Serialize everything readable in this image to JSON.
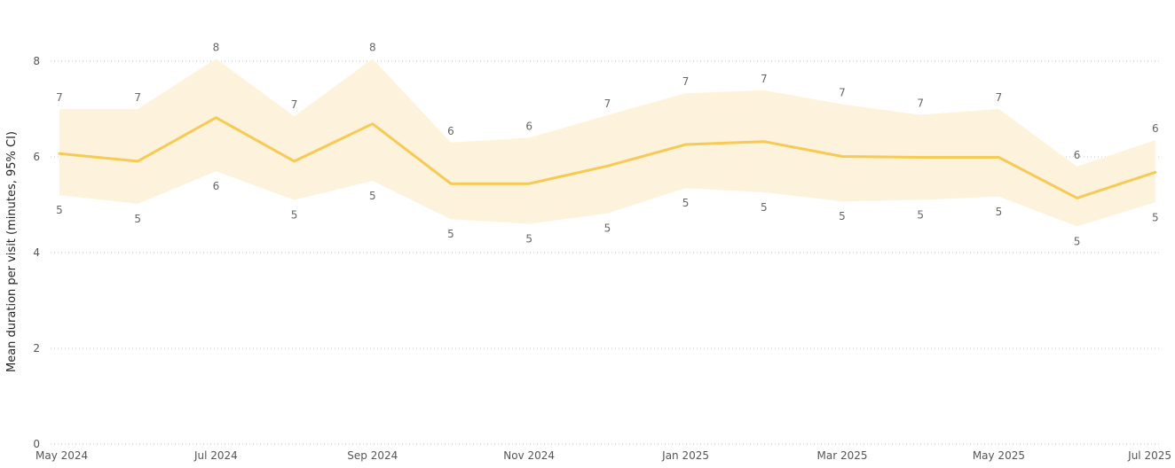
{
  "chart_data": {
    "type": "line",
    "ylabel": "Mean duration per visit (minutes, 95% CI)",
    "xlabel": "",
    "ylim": [
      0,
      8
    ],
    "y_ticks": [
      "0",
      "2",
      "4",
      "6",
      "8"
    ],
    "x_tick_labels": [
      "May 2024",
      "Jul 2024",
      "Sep 2024",
      "Nov 2024",
      "Jan 2025",
      "Mar 2025",
      "May 2025",
      "Jul 2025"
    ],
    "x_tick_positions": [
      0,
      2,
      4,
      6,
      8,
      10,
      12,
      14
    ],
    "x": [
      "2024-05",
      "2024-06",
      "2024-07",
      "2024-08",
      "2024-09",
      "2024-10",
      "2024-11",
      "2024-12",
      "2025-01",
      "2025-02",
      "2025-03",
      "2025-04",
      "2025-05",
      "2025-06",
      "2025-07"
    ],
    "mean": [
      6.07,
      5.91,
      6.82,
      5.91,
      6.69,
      5.44,
      5.44,
      5.81,
      6.26,
      6.32,
      6.01,
      5.99,
      5.99,
      5.14,
      5.68
    ],
    "upper": [
      7.0,
      7.0,
      8.05,
      6.85,
      8.05,
      6.3,
      6.4,
      6.87,
      7.33,
      7.39,
      7.1,
      6.88,
      7.0,
      5.8,
      6.35
    ],
    "lower": [
      5.2,
      5.02,
      5.7,
      5.1,
      5.5,
      4.7,
      4.6,
      4.82,
      5.35,
      5.26,
      5.07,
      5.1,
      5.17,
      4.55,
      5.05
    ],
    "upper_labels": [
      "7",
      "7",
      "8",
      "7",
      "8",
      "6",
      "6",
      "7",
      "7",
      "7",
      "7",
      "7",
      "7",
      "6",
      "6"
    ],
    "lower_labels": [
      "5",
      "5",
      "6",
      "5",
      "5",
      "5",
      "5",
      "5",
      "5",
      "5",
      "5",
      "5",
      "5",
      "5",
      "5"
    ],
    "grid": true,
    "colors": {
      "line": "#F7C955",
      "band": "#FDF3DC",
      "grid": "#C8C8C8"
    }
  }
}
